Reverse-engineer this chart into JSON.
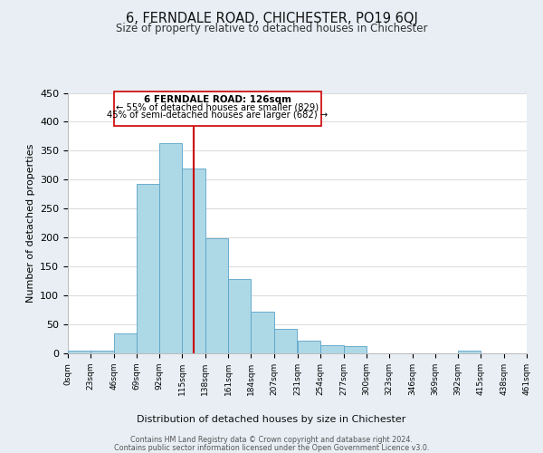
{
  "title": "6, FERNDALE ROAD, CHICHESTER, PO19 6QJ",
  "subtitle": "Size of property relative to detached houses in Chichester",
  "xlabel": "Distribution of detached houses by size in Chichester",
  "ylabel": "Number of detached properties",
  "bar_color": "#add8e6",
  "bar_edge_color": "#5ba3c9",
  "background_color": "#e8eef4",
  "plot_background": "#ffffff",
  "bin_edges": [
    0,
    23,
    46,
    69,
    92,
    115,
    138,
    161,
    184,
    207,
    231,
    254,
    277,
    300,
    323,
    346,
    369,
    392,
    415,
    438,
    461
  ],
  "bar_heights": [
    5,
    5,
    35,
    293,
    363,
    320,
    199,
    129,
    72,
    42,
    22,
    14,
    12,
    0,
    0,
    0,
    0,
    5,
    0,
    0
  ],
  "property_line_x": 126,
  "property_line_color": "#cc0000",
  "ylim": [
    0,
    450
  ],
  "annotation_title": "6 FERNDALE ROAD: 126sqm",
  "annotation_line1": "← 55% of detached houses are smaller (829)",
  "annotation_line2": "45% of semi-detached houses are larger (682) →",
  "annotation_box_color": "#ffffff",
  "annotation_box_edge": "#cc0000",
  "footer_line1": "Contains HM Land Registry data © Crown copyright and database right 2024.",
  "footer_line2": "Contains public sector information licensed under the Open Government Licence v3.0.",
  "tick_labels": [
    "0sqm",
    "23sqm",
    "46sqm",
    "69sqm",
    "92sqm",
    "115sqm",
    "138sqm",
    "161sqm",
    "184sqm",
    "207sqm",
    "231sqm",
    "254sqm",
    "277sqm",
    "300sqm",
    "323sqm",
    "346sqm",
    "369sqm",
    "392sqm",
    "415sqm",
    "438sqm",
    "461sqm"
  ],
  "yticks": [
    0,
    50,
    100,
    150,
    200,
    250,
    300,
    350,
    400,
    450
  ]
}
